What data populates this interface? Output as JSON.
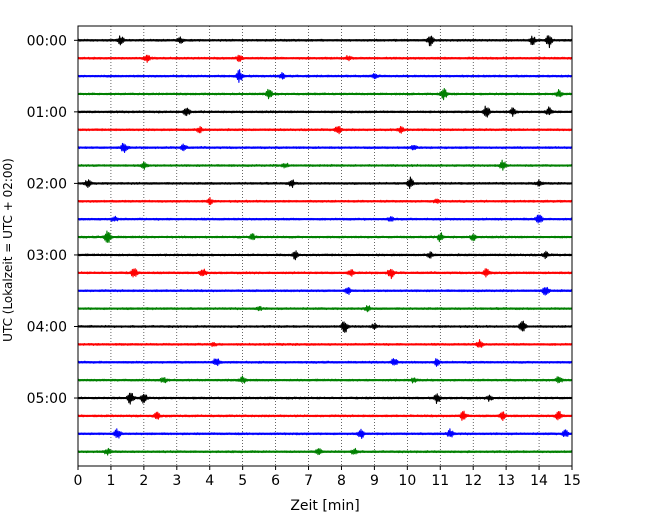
{
  "chart_data": {
    "type": "line",
    "xlabel": "Zeit  [min]",
    "ylabel": "UTC (Lokalzeit = UTC + 02:00)",
    "xlim": [
      0,
      15
    ],
    "x_ticks": [
      0,
      1,
      2,
      3,
      4,
      5,
      6,
      7,
      8,
      9,
      10,
      11,
      12,
      13,
      14,
      15
    ],
    "x_tick_labels": [
      "0",
      "1",
      "2",
      "3",
      "4",
      "5",
      "6",
      "7",
      "8",
      "9",
      "10",
      "11",
      "12",
      "13",
      "14",
      "15"
    ],
    "y_tick_labels": [
      "00:00",
      "01:00",
      "02:00",
      "03:00",
      "04:00",
      "05:00"
    ],
    "lines_per_hour": 4,
    "line_minutes": 15,
    "grid": "vertical-dotted",
    "color_cycle": [
      "#000000",
      "#ff0000",
      "#0000ff",
      "#008000"
    ],
    "series": [
      {
        "start": "00:00",
        "bursts": [
          [
            1.3,
            0.6
          ],
          [
            3.1,
            0.4
          ],
          [
            10.7,
            0.8
          ],
          [
            13.8,
            0.6
          ],
          [
            14.3,
            1.0
          ]
        ]
      },
      {
        "start": "00:15",
        "bursts": [
          [
            2.1,
            0.5
          ],
          [
            4.9,
            0.4
          ],
          [
            8.2,
            0.3
          ]
        ]
      },
      {
        "start": "00:30",
        "bursts": [
          [
            4.9,
            0.9
          ],
          [
            6.2,
            0.4
          ],
          [
            9.0,
            0.3
          ]
        ]
      },
      {
        "start": "00:45",
        "bursts": [
          [
            5.8,
            0.7
          ],
          [
            11.1,
            0.9
          ],
          [
            14.6,
            0.6
          ]
        ]
      },
      {
        "start": "01:00",
        "bursts": [
          [
            3.3,
            0.7
          ],
          [
            12.4,
            1.0
          ],
          [
            13.2,
            0.6
          ],
          [
            14.3,
            0.6
          ]
        ]
      },
      {
        "start": "01:15",
        "bursts": [
          [
            3.7,
            0.4
          ],
          [
            7.9,
            0.6
          ],
          [
            9.8,
            0.4
          ]
        ]
      },
      {
        "start": "01:30",
        "bursts": [
          [
            1.4,
            0.9
          ],
          [
            3.2,
            0.5
          ],
          [
            10.2,
            0.4
          ]
        ]
      },
      {
        "start": "01:45",
        "bursts": [
          [
            2.0,
            0.6
          ],
          [
            6.3,
            0.4
          ],
          [
            12.9,
            0.7
          ]
        ]
      },
      {
        "start": "02:00",
        "bursts": [
          [
            0.3,
            0.5
          ],
          [
            6.5,
            0.5
          ],
          [
            10.1,
            0.8
          ],
          [
            14.0,
            0.4
          ]
        ]
      },
      {
        "start": "02:15",
        "bursts": [
          [
            4.0,
            0.4
          ],
          [
            10.9,
            0.3
          ]
        ]
      },
      {
        "start": "02:30",
        "bursts": [
          [
            1.1,
            0.4
          ],
          [
            14.0,
            0.8
          ],
          [
            9.5,
            0.3
          ]
        ]
      },
      {
        "start": "02:45",
        "bursts": [
          [
            0.9,
            1.0
          ],
          [
            5.3,
            0.4
          ],
          [
            11.0,
            0.6
          ],
          [
            12.0,
            0.5
          ]
        ]
      },
      {
        "start": "03:00",
        "bursts": [
          [
            6.6,
            0.6
          ],
          [
            10.7,
            0.4
          ],
          [
            14.2,
            0.5
          ]
        ]
      },
      {
        "start": "03:15",
        "bursts": [
          [
            1.7,
            0.7
          ],
          [
            3.8,
            0.6
          ],
          [
            8.3,
            0.5
          ],
          [
            9.5,
            0.8
          ],
          [
            12.4,
            0.6
          ]
        ]
      },
      {
        "start": "03:30",
        "bursts": [
          [
            8.2,
            0.5
          ],
          [
            14.2,
            0.7
          ]
        ]
      },
      {
        "start": "03:45",
        "bursts": [
          [
            5.5,
            0.3
          ],
          [
            8.8,
            0.4
          ]
        ]
      },
      {
        "start": "04:00",
        "bursts": [
          [
            8.1,
            0.9
          ],
          [
            13.5,
            1.0
          ],
          [
            9.0,
            0.4
          ]
        ]
      },
      {
        "start": "04:15",
        "bursts": [
          [
            4.1,
            0.3
          ],
          [
            12.2,
            0.6
          ]
        ]
      },
      {
        "start": "04:30",
        "bursts": [
          [
            4.2,
            0.6
          ],
          [
            9.6,
            0.7
          ],
          [
            10.9,
            0.5
          ]
        ]
      },
      {
        "start": "04:45",
        "bursts": [
          [
            2.6,
            0.4
          ],
          [
            5.0,
            0.5
          ],
          [
            10.2,
            0.4
          ],
          [
            14.6,
            0.5
          ]
        ]
      },
      {
        "start": "05:00",
        "bursts": [
          [
            1.6,
            0.9
          ],
          [
            2.0,
            0.8
          ],
          [
            10.9,
            0.7
          ],
          [
            12.5,
            0.4
          ]
        ]
      },
      {
        "start": "05:15",
        "bursts": [
          [
            2.4,
            0.5
          ],
          [
            11.7,
            0.7
          ],
          [
            12.9,
            0.6
          ],
          [
            14.6,
            0.7
          ]
        ]
      },
      {
        "start": "05:30",
        "bursts": [
          [
            1.2,
            0.8
          ],
          [
            8.6,
            0.6
          ],
          [
            11.3,
            0.7
          ],
          [
            14.8,
            0.5
          ]
        ]
      },
      {
        "start": "05:45",
        "bursts": [
          [
            0.9,
            0.5
          ],
          [
            7.3,
            0.4
          ],
          [
            8.4,
            0.5
          ]
        ]
      }
    ]
  }
}
